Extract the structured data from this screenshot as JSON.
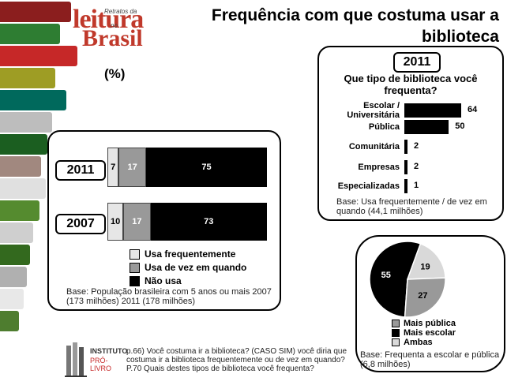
{
  "header": {
    "logo_line1": "leitura",
    "logo_line2": "Brasil",
    "logo_small_top": "Retratos da",
    "logo_small_mid": "no",
    "title_line1": "Frequência com que costuma usar a",
    "title_line2": "biblioteca",
    "percent_label": "(%)"
  },
  "chart_data": [
    {
      "type": "bar",
      "orientation": "horizontal-stacked",
      "categories": [
        "2011",
        "2007"
      ],
      "series": [
        {
          "name": "Usa frequentemente",
          "values": [
            7,
            10
          ],
          "color": "#e6e6e6"
        },
        {
          "name": "Usa de vez em quando",
          "values": [
            17,
            17
          ],
          "color": "#999999"
        },
        {
          "name": "Não usa",
          "values": [
            75,
            73
          ],
          "color": "#000000"
        }
      ],
      "base": "Base: População brasileira com 5 anos ou mais 2007 (173 milhões) 2011 (178 milhões)"
    },
    {
      "type": "bar",
      "orientation": "horizontal",
      "year": "2011",
      "title": "Que tipo de biblioteca você frequenta?",
      "categories": [
        "Escolar / Universitária",
        "Pública",
        "Comunitária",
        "Empresas",
        "Especializadas"
      ],
      "values": [
        64,
        50,
        2,
        2,
        1
      ],
      "xlim": [
        0,
        64
      ],
      "base": "Base: Usa frequentemente / de vez em quando (44,1 milhões)"
    },
    {
      "type": "pie",
      "slices": [
        {
          "name": "Mais escolar",
          "value": 55,
          "color": "#000000"
        },
        {
          "name": "Ambas",
          "value": 19,
          "color": "#d9d9d9"
        },
        {
          "name": "Mais pública",
          "value": 27,
          "color": "#999999"
        }
      ],
      "legend": [
        "Mais pública",
        "Mais escolar",
        "Ambas"
      ],
      "base": "Base: Frequenta a escolar e pública (6,8 milhões)"
    }
  ],
  "footer": {
    "institute_name": "INSTITUTO",
    "institute_sub": "PRÓ-LIVRO",
    "question_text": "p.66) Você costuma ir a biblioteca? (CASO SIM) você diria que costuma ir a biblioteca frequentemente ou de vez em quando? P.70 Quais destes tipos de biblioteca você frequenta?"
  },
  "colors": {
    "logo_red": "#c0392b",
    "frequent": "#e6e6e6",
    "sometimes": "#999999",
    "never": "#000000"
  }
}
